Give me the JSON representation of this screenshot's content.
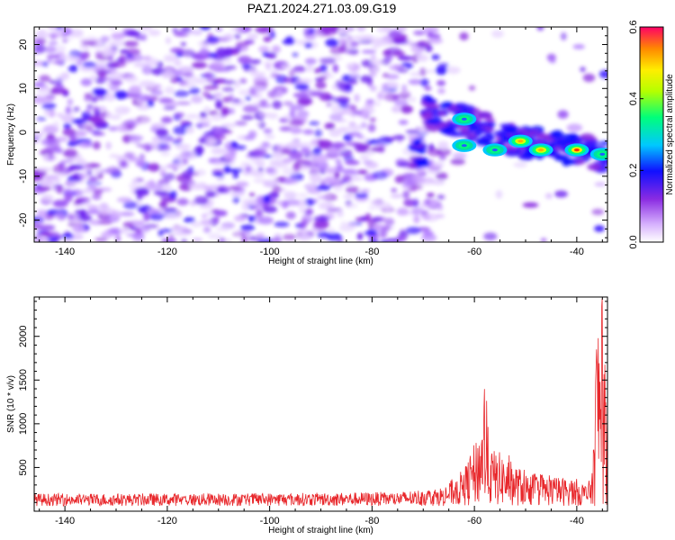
{
  "title": "PAZ1.2024.271.03.09.G19",
  "chart_data": [
    {
      "type": "heatmap",
      "xlabel": "Height of straight line (km)",
      "ylabel": "Frequency (Hz)",
      "xlim": [
        -146,
        -34
      ],
      "ylim": [
        -25,
        24
      ],
      "x_ticks": [
        -140,
        -120,
        -100,
        -80,
        -60,
        -40
      ],
      "y_ticks": [
        -20,
        -10,
        0,
        10,
        20
      ],
      "colorbar": {
        "label": "Normalized spectral amplitude",
        "range": [
          0.0,
          0.6
        ],
        "ticks": [
          "0.0",
          "0.2",
          "0.4",
          "0.6"
        ]
      },
      "ridge": [
        {
          "x": -70,
          "y": 5
        },
        {
          "x": -64,
          "y": 3
        },
        {
          "x": -58,
          "y": 1
        },
        {
          "x": -52,
          "y": -2
        },
        {
          "x": -46,
          "y": -3
        },
        {
          "x": -40,
          "y": -4
        },
        {
          "x": -35,
          "y": -5
        }
      ],
      "ridge_peaks": [
        {
          "x": -62,
          "y": 3,
          "v": 0.3
        },
        {
          "x": -62,
          "y": -3,
          "v": 0.28
        },
        {
          "x": -56,
          "y": -4,
          "v": 0.3
        },
        {
          "x": -51,
          "y": -2,
          "v": 0.45
        },
        {
          "x": -47,
          "y": -4,
          "v": 0.5
        },
        {
          "x": -40,
          "y": -4,
          "v": 0.58
        },
        {
          "x": -35,
          "y": -5,
          "v": 0.35
        }
      ]
    },
    {
      "type": "line",
      "xlabel": "Height of straight line (km)",
      "ylabel": "SNR (10 * v/v)",
      "xlim": [
        -146,
        -34
      ],
      "ylim": [
        0,
        2450
      ],
      "x_ticks": [
        -140,
        -120,
        -100,
        -80,
        -60,
        -40
      ],
      "y_ticks": [
        500,
        1000,
        1500,
        2000
      ],
      "series": [
        {
          "color": "#e8272b",
          "envelope": [
            {
              "x": -146,
              "y": 150
            },
            {
              "x": -120,
              "y": 150
            },
            {
              "x": -90,
              "y": 160
            },
            {
              "x": -75,
              "y": 170
            },
            {
              "x": -66,
              "y": 230
            },
            {
              "x": -62,
              "y": 450
            },
            {
              "x": -59,
              "y": 900
            },
            {
              "x": -58,
              "y": 1450
            },
            {
              "x": -57,
              "y": 700
            },
            {
              "x": -55,
              "y": 650
            },
            {
              "x": -50,
              "y": 400
            },
            {
              "x": -44,
              "y": 350
            },
            {
              "x": -40,
              "y": 330
            },
            {
              "x": -38,
              "y": 250
            },
            {
              "x": -37,
              "y": 400
            },
            {
              "x": -36,
              "y": 2450
            },
            {
              "x": -35,
              "y": 2200
            },
            {
              "x": -34,
              "y": 1200
            }
          ]
        }
      ]
    }
  ]
}
